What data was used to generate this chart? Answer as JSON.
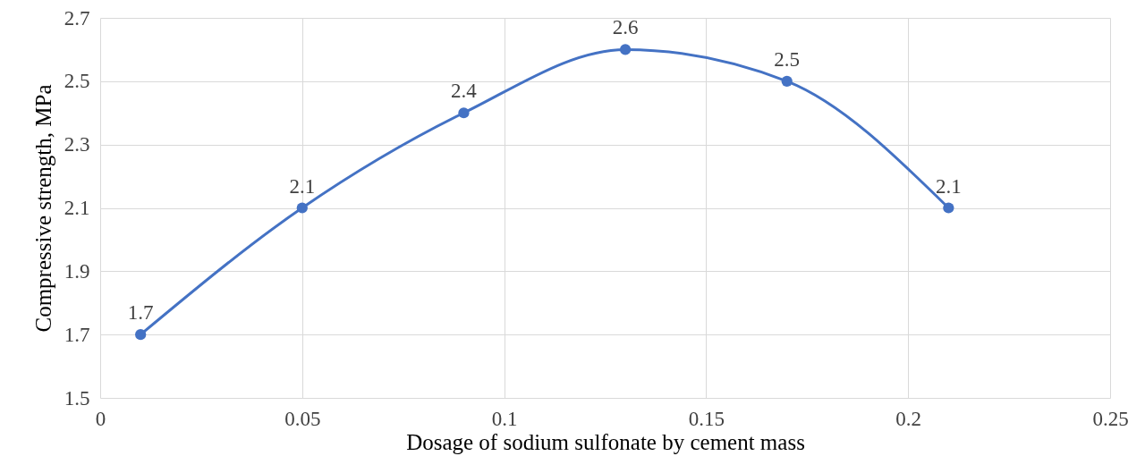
{
  "chart_data": {
    "type": "line",
    "xlabel": "Dosage of sodium sulfonate by cement mass",
    "ylabel": "Compressive strength, MPa",
    "x": [
      0.01,
      0.05,
      0.09,
      0.13,
      0.17,
      0.21
    ],
    "series": [
      {
        "color": "#4472c4",
        "values": [
          1.7,
          2.1,
          2.4,
          2.6,
          2.5,
          2.1
        ]
      }
    ],
    "xlim": [
      0,
      0.25
    ],
    "xticks": [
      0,
      0.05,
      0.1,
      0.15,
      0.2,
      0.25
    ],
    "ylim": [
      1.5,
      2.7
    ],
    "yticks": [
      1.5,
      1.7,
      1.9,
      2.1,
      2.3,
      2.5,
      2.7
    ],
    "grid": true,
    "marker": "circle",
    "line_style": "solid",
    "data_labels": true
  }
}
